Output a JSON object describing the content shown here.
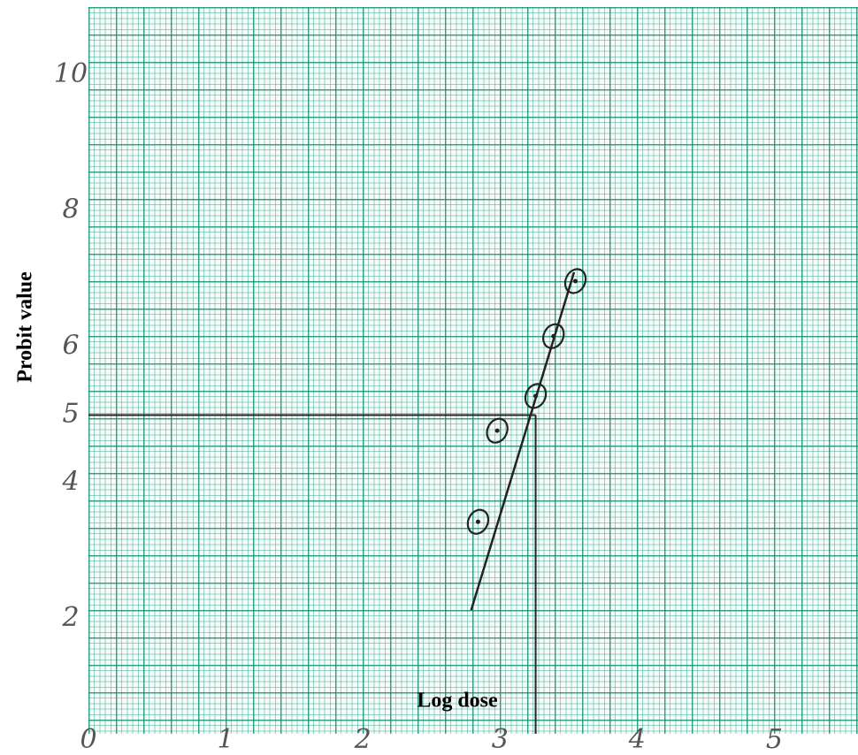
{
  "chart_data": {
    "type": "scatter",
    "x_label": "Log dose",
    "y_label": "Probit value",
    "x": [
      2.84,
      2.98,
      3.26,
      3.39,
      3.55
    ],
    "values": [
      3.43,
      4.77,
      5.28,
      6.16,
      6.97
    ],
    "fit_line": {
      "x": [
        2.79,
        3.54
      ],
      "values": [
        2.13,
        7.1
      ]
    },
    "reference": {
      "x": 3.26,
      "y": 5
    },
    "xlim": [
      0,
      5.61
    ],
    "ylim": [
      0,
      11
    ],
    "xticks": [
      0,
      1,
      2,
      3,
      4,
      5
    ],
    "yticks": [
      2,
      4,
      5,
      6,
      8,
      10
    ],
    "color": "#222222",
    "grid": true
  }
}
